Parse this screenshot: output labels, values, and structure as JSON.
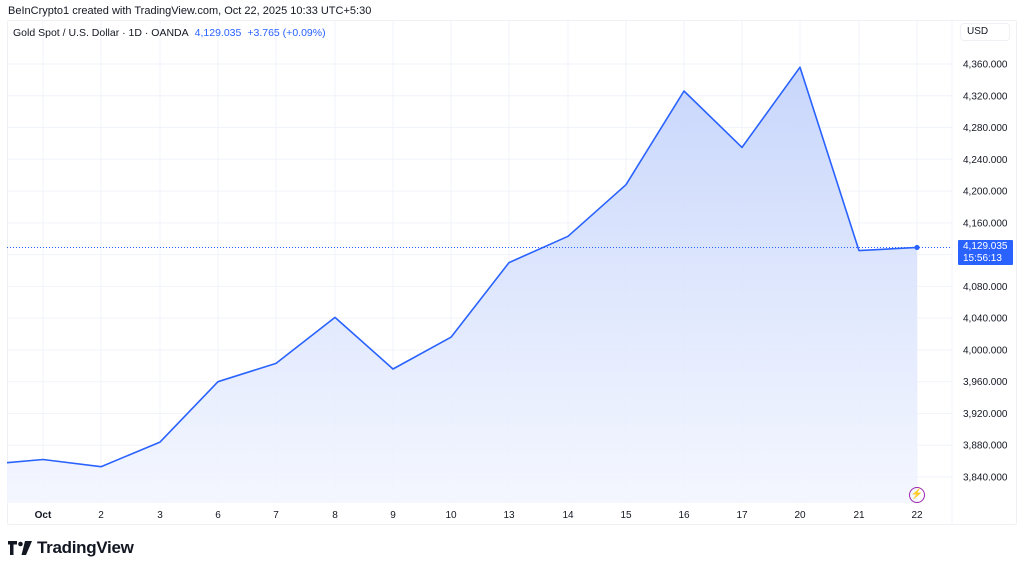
{
  "header": {
    "credit": "BeInCrypto1 created with TradingView.com, Oct 22, 2025 10:33 UTC+5:30"
  },
  "legend": {
    "symbol": "Gold Spot / U.S. Dollar · 1D · OANDA",
    "last_price": "4,129.035",
    "change": "+3.765 (+0.09%)"
  },
  "price_axis": {
    "currency": "USD",
    "ticks": [
      "4,360.000",
      "4,320.000",
      "4,280.000",
      "4,240.000",
      "4,200.000",
      "4,160.000",
      "4,080.000",
      "4,040.000",
      "4,000.000",
      "3,960.000",
      "3,920.000",
      "3,880.000",
      "3,840.000"
    ]
  },
  "price_tag": {
    "price": "4,129.035",
    "countdown": "15:56:13"
  },
  "time_axis": {
    "ticks": [
      "Oct",
      "2",
      "3",
      "6",
      "7",
      "8",
      "9",
      "10",
      "13",
      "14",
      "15",
      "16",
      "17",
      "20",
      "21",
      "22"
    ]
  },
  "brand": {
    "name": "TradingView"
  },
  "colors": {
    "line": "#2962ff",
    "fill_top": "#c8d6fb",
    "fill_bottom": "#f4f7ff",
    "grid": "#f0f3fa",
    "event_icon": "#9c27b0"
  },
  "chart_data": {
    "type": "area",
    "title": "Gold Spot / U.S. Dollar · 1D · OANDA",
    "xlabel": "",
    "ylabel": "USD",
    "categories": [
      "Sep 30",
      "Oct 1",
      "Oct 2",
      "Oct 3",
      "Oct 6",
      "Oct 7",
      "Oct 8",
      "Oct 9",
      "Oct 10",
      "Oct 13",
      "Oct 14",
      "Oct 15",
      "Oct 16",
      "Oct 17",
      "Oct 20",
      "Oct 21",
      "Oct 22"
    ],
    "values": [
      3858,
      3862,
      3853,
      3884,
      3960,
      3983,
      4041,
      3976,
      4016,
      4110,
      4143,
      4208,
      4326,
      4255,
      4356,
      4125,
      4129.035
    ],
    "ylim": [
      3820,
      4380
    ],
    "grid": true,
    "legend_position": "top-left",
    "last_value_line": 4129.035
  }
}
